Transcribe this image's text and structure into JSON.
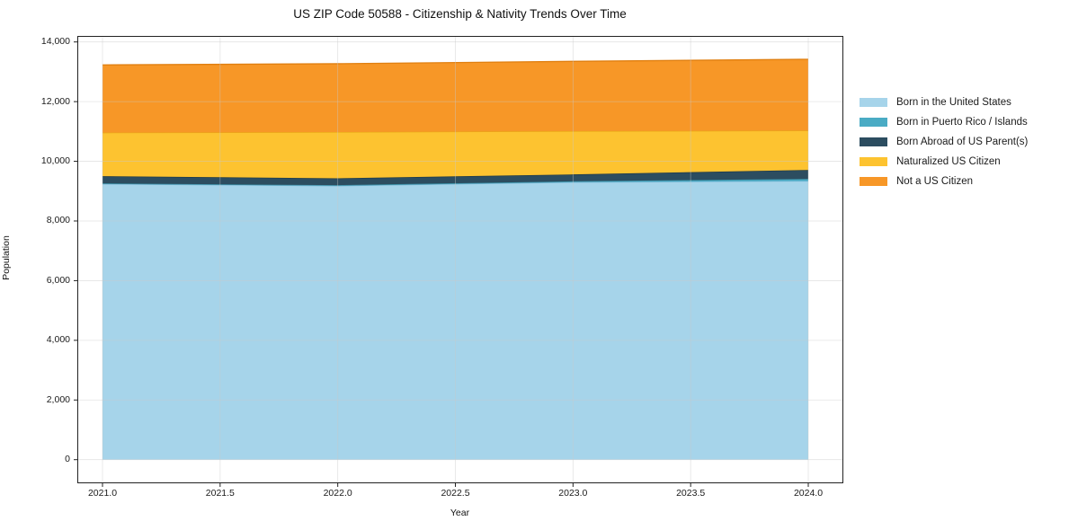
{
  "chart_data": {
    "type": "area",
    "stacked": true,
    "title": "US ZIP Code 50588 - Citizenship & Nativity Trends Over Time",
    "xlabel": "Year",
    "ylabel": "Population",
    "x": [
      2021,
      2022,
      2023,
      2024
    ],
    "series": [
      {
        "name": "Born in the United States",
        "color": "#a6d4ea",
        "edge": "#7db9d8",
        "values": [
          9240,
          9180,
          9300,
          9340
        ]
      },
      {
        "name": "Born in Puerto Rico / Islands",
        "color": "#4aabc4",
        "edge": "#3b8ea3",
        "values": [
          20,
          20,
          30,
          70
        ]
      },
      {
        "name": "Born Abroad of US Parent(s)",
        "color": "#2c4d60",
        "edge": "#1f3947",
        "values": [
          240,
          230,
          230,
          300
        ]
      },
      {
        "name": "Naturalized US Citizen",
        "color": "#fdc330",
        "edge": "#e8a816",
        "values": [
          1460,
          1550,
          1450,
          1320
        ]
      },
      {
        "name": "Not a US Citizen",
        "color": "#f79727",
        "edge": "#e07f10",
        "values": [
          2270,
          2290,
          2340,
          2390
        ]
      }
    ],
    "totals": [
      13230,
      13270,
      13350,
      13420
    ],
    "xlim": [
      2020.89,
      2024.15
    ],
    "ylim": [
      0,
      14000
    ],
    "x_ticks": {
      "values": [
        2021.0,
        2021.5,
        2022.0,
        2022.5,
        2023.0,
        2023.5,
        2024.0
      ],
      "labels": [
        "2021.0",
        "2021.5",
        "2022.0",
        "2022.5",
        "2023.0",
        "2023.5",
        "2024.0"
      ]
    },
    "y_ticks": {
      "values": [
        0,
        2000,
        4000,
        6000,
        8000,
        10000,
        12000,
        14000
      ],
      "labels": [
        "0",
        "2,000",
        "4,000",
        "6,000",
        "8,000",
        "10,000",
        "12,000",
        "14,000"
      ]
    },
    "grid": true,
    "legend_position": "right"
  }
}
